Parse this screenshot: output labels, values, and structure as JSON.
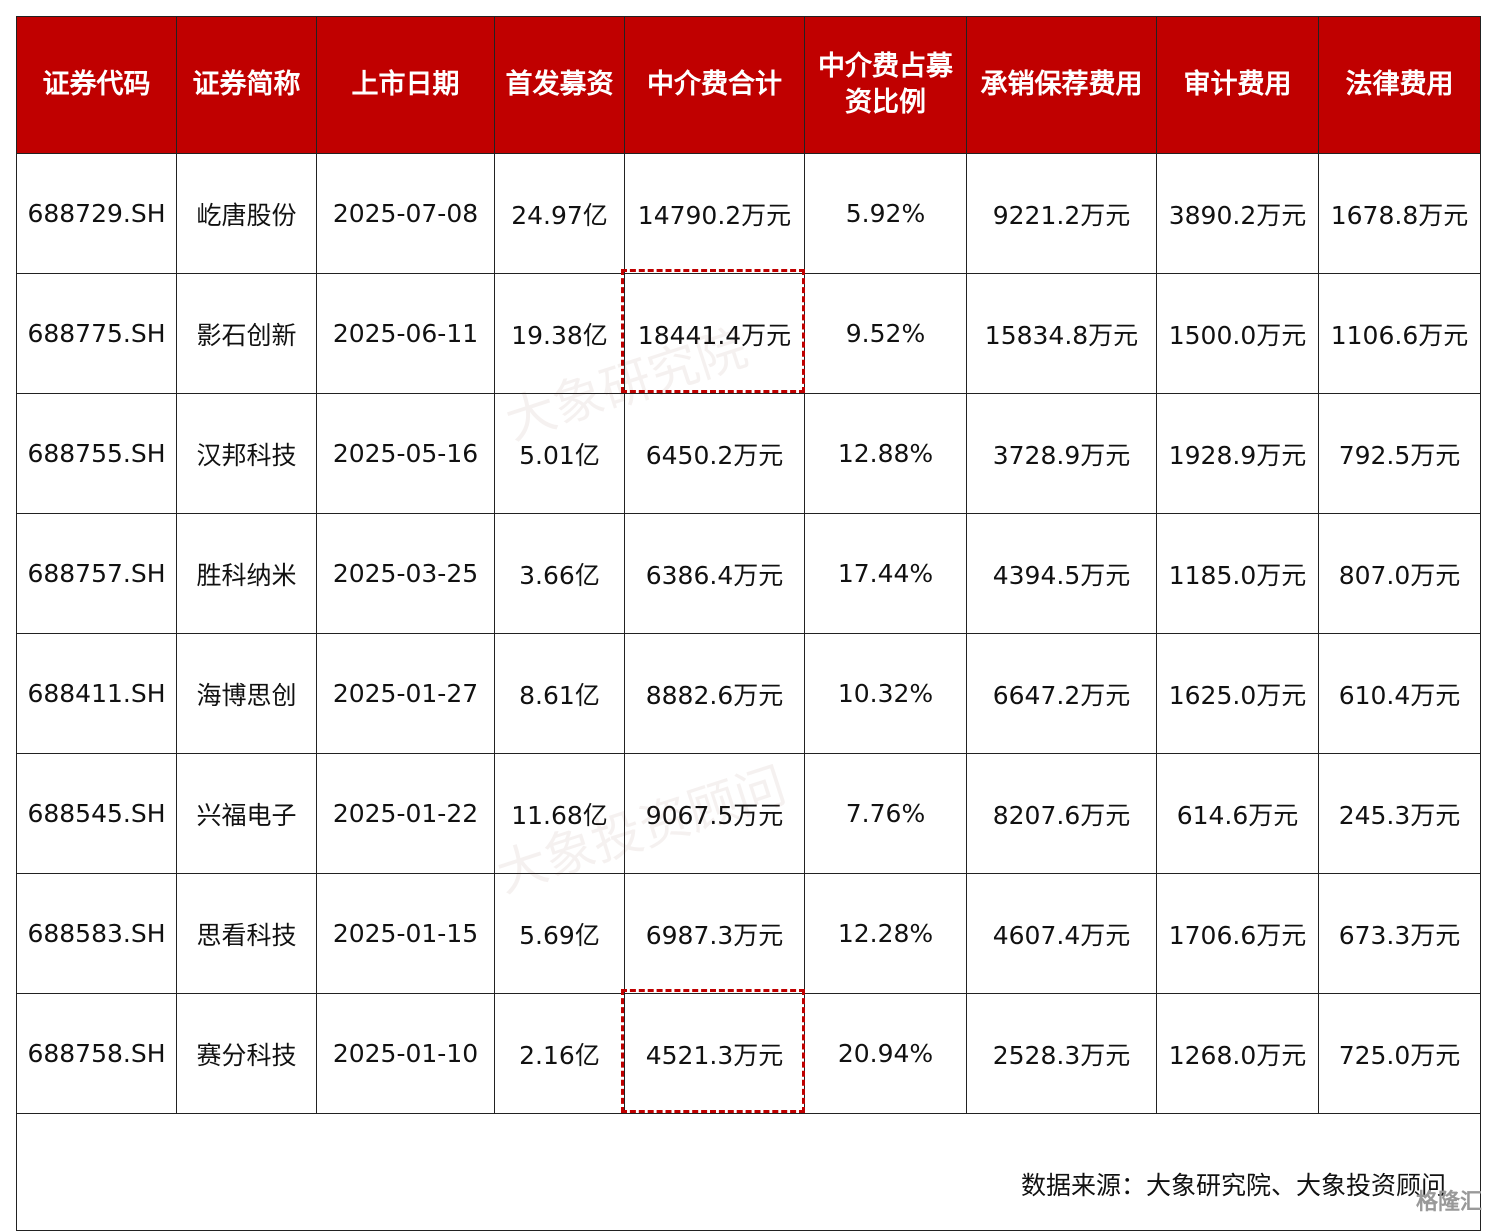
{
  "table": {
    "header": [
      "证券代码",
      "证券简称",
      "上市日期",
      "首发募资",
      "中介费合计",
      "中介费占募资比例",
      "承销保荐费用",
      "审计费用",
      "法律费用"
    ],
    "rows": [
      [
        "688729.SH",
        "屹唐股份",
        "2025-07-08",
        "24.97亿",
        "14790.2万元",
        "5.92%",
        "9221.2万元",
        "3890.2万元",
        "1678.8万元"
      ],
      [
        "688775.SH",
        "影石创新",
        "2025-06-11",
        "19.38亿",
        "18441.4万元",
        "9.52%",
        "15834.8万元",
        "1500.0万元",
        "1106.6万元"
      ],
      [
        "688755.SH",
        "汉邦科技",
        "2025-05-16",
        "5.01亿",
        "6450.2万元",
        "12.88%",
        "3728.9万元",
        "1928.9万元",
        "792.5万元"
      ],
      [
        "688757.SH",
        "胜科纳米",
        "2025-03-25",
        "3.66亿",
        "6386.4万元",
        "17.44%",
        "4394.5万元",
        "1185.0万元",
        "807.0万元"
      ],
      [
        "688411.SH",
        "海博思创",
        "2025-01-27",
        "8.61亿",
        "8882.6万元",
        "10.32%",
        "6647.2万元",
        "1625.0万元",
        "610.4万元"
      ],
      [
        "688545.SH",
        "兴福电子",
        "2025-01-22",
        "11.68亿",
        "9067.5万元",
        "7.76%",
        "8207.6万元",
        "614.6万元",
        "245.3万元"
      ],
      [
        "688583.SH",
        "思看科技",
        "2025-01-15",
        "5.69亿",
        "6987.3万元",
        "12.28%",
        "4607.4万元",
        "1706.6万元",
        "673.3万元"
      ],
      [
        "688758.SH",
        "赛分科技",
        "2025-01-10",
        "2.16亿",
        "4521.3万元",
        "20.94%",
        "2528.3万元",
        "1268.0万元",
        "725.0万元"
      ]
    ]
  },
  "footer": {
    "source": "数据来源：大象研究院、大象投资顾问"
  },
  "watermarks": [
    "大象研究院",
    "大象投资顾问"
  ],
  "logo": "格隆汇"
}
